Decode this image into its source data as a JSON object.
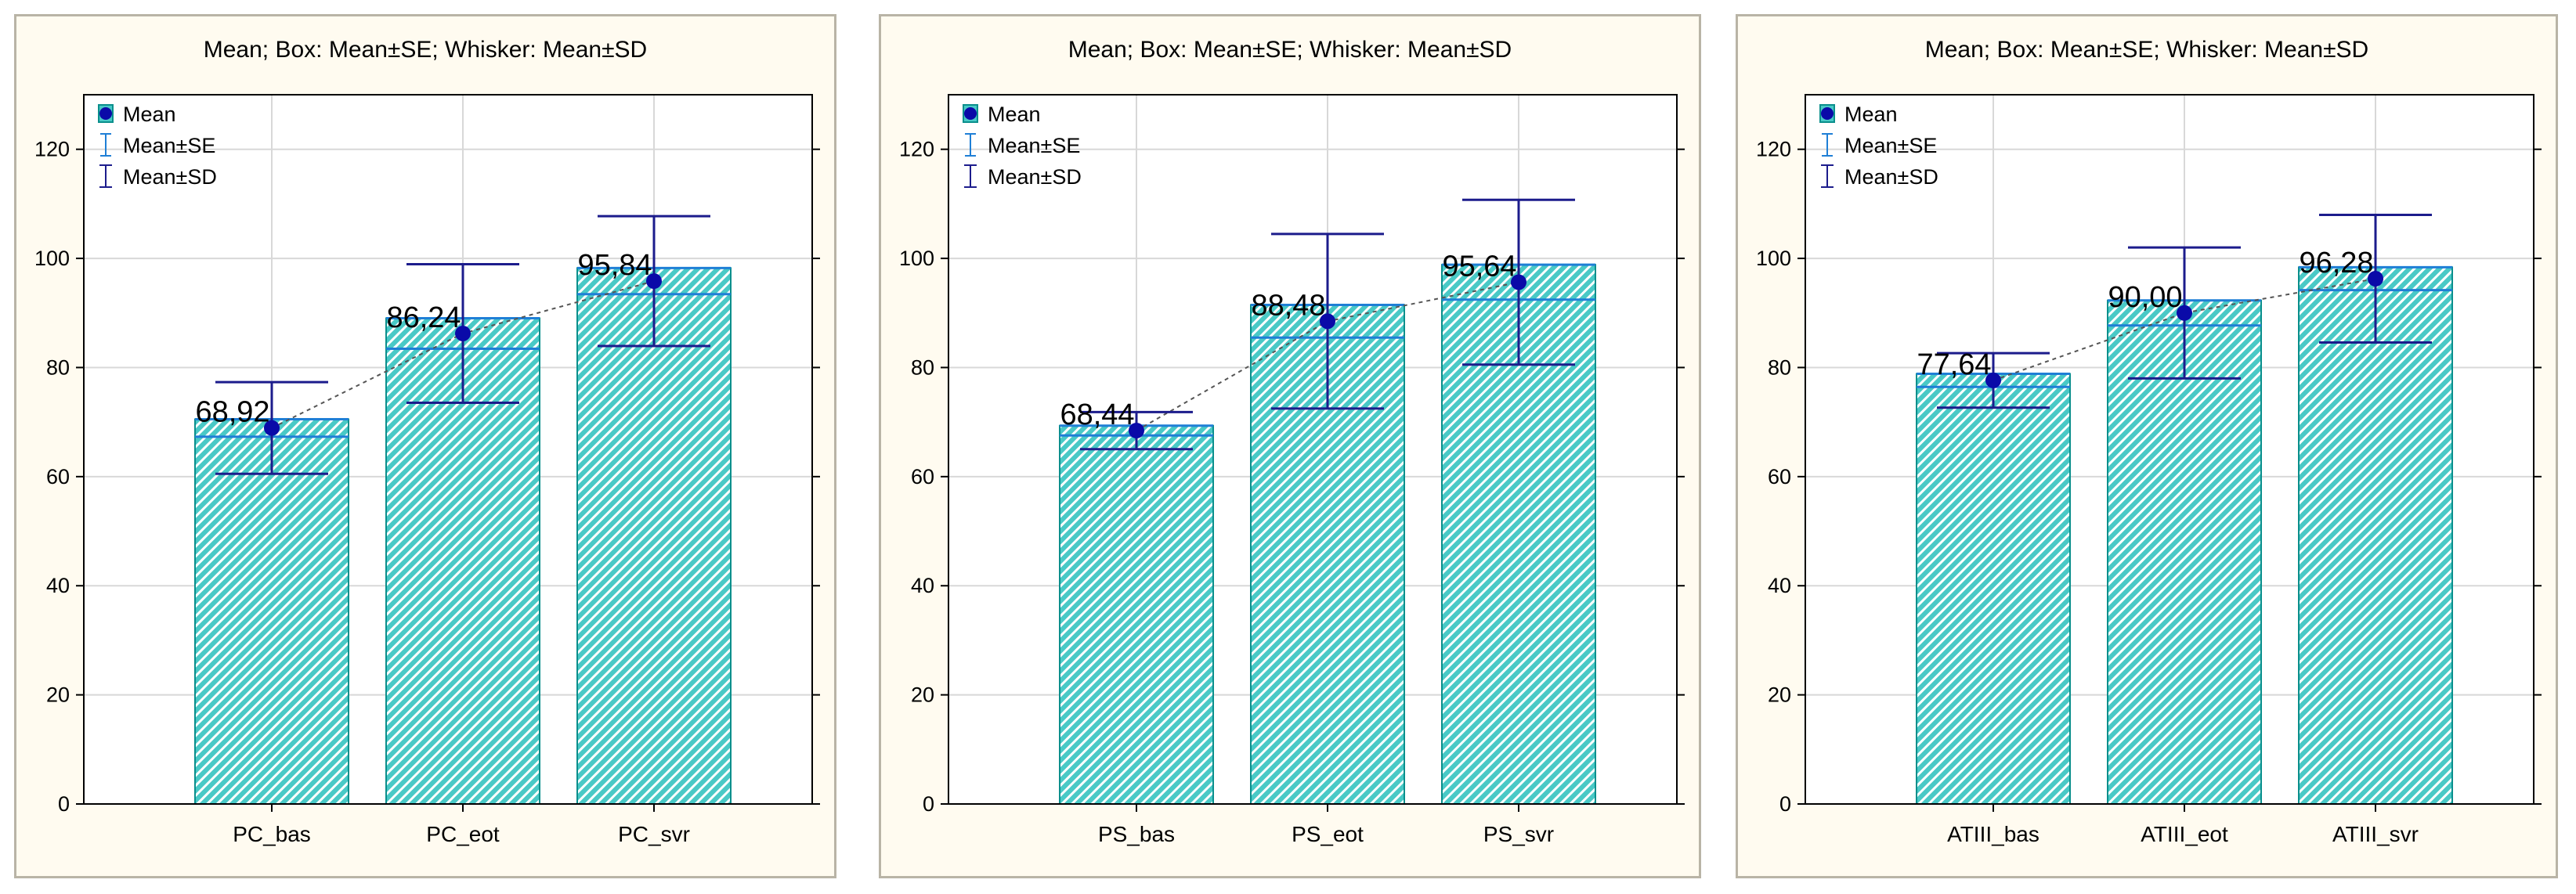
{
  "colors": {
    "panel_bg": "#fffbf0",
    "plot_bg": "#ffffff",
    "bar_fill": "#49c9c6",
    "hatch": "#ffffff",
    "bar_edge": "#0a8f8c",
    "se_line": "#1f7fd6",
    "sd_line": "#1c1c8c",
    "mean_dot": "#0a0aa8",
    "grid": "#d8d8d8"
  },
  "legend": {
    "mean": "Mean",
    "se": "Mean±SE",
    "sd": "Mean±SD"
  },
  "chart_data": [
    {
      "type": "bar",
      "title": "Mean; Box: Mean±SE; Whisker: Mean±SD",
      "categories": [
        "PC_bas",
        "PC_eot",
        "PC_svr"
      ],
      "mean": [
        68.92,
        86.24,
        95.84
      ],
      "mean_labels": [
        "68,92",
        "86,24",
        "95,84"
      ],
      "se": [
        1.6,
        2.8,
        2.4
      ],
      "sd": [
        8.4,
        12.7,
        11.9
      ],
      "ylim": [
        0,
        130
      ],
      "yticks": [
        0,
        20,
        40,
        60,
        80,
        100,
        120
      ],
      "legend": [
        "Mean",
        "Mean±SE",
        "Mean±SD"
      ],
      "legend_position": "top-left",
      "grid": true
    },
    {
      "type": "bar",
      "title": "Mean; Box: Mean±SE; Whisker: Mean±SD",
      "categories": [
        "PS_bas",
        "PS_eot",
        "PS_svr"
      ],
      "mean": [
        68.44,
        88.48,
        95.64
      ],
      "mean_labels": [
        "68,44",
        "88,48",
        "95,64"
      ],
      "se": [
        0.9,
        3.0,
        3.2
      ],
      "sd": [
        3.4,
        16.0,
        15.1
      ],
      "ylim": [
        0,
        130
      ],
      "yticks": [
        0,
        20,
        40,
        60,
        80,
        100,
        120
      ],
      "legend": [
        "Mean",
        "Mean±SE",
        "Mean±SD"
      ],
      "legend_position": "top-left",
      "grid": true
    },
    {
      "type": "bar",
      "title": "Mean; Box: Mean±SE; Whisker: Mean±SD",
      "categories": [
        "ATIII_bas",
        "ATIII_eot",
        "ATIII_svr"
      ],
      "mean": [
        77.64,
        90.0,
        96.28
      ],
      "mean_labels": [
        "77,64",
        "90,00",
        "96,28"
      ],
      "se": [
        1.2,
        2.3,
        2.1
      ],
      "sd": [
        5.0,
        12.0,
        11.7
      ],
      "ylim": [
        0,
        130
      ],
      "yticks": [
        0,
        20,
        40,
        60,
        80,
        100,
        120
      ],
      "legend": [
        "Mean",
        "Mean±SE",
        "Mean±SD"
      ],
      "legend_position": "top-left",
      "grid": true
    }
  ]
}
